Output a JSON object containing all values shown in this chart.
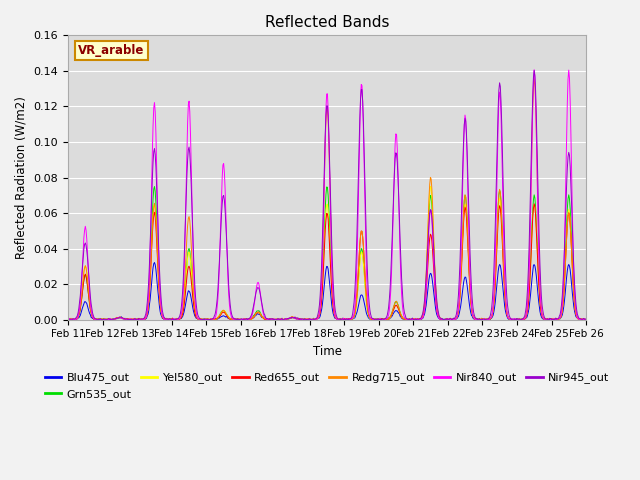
{
  "title": "Reflected Bands",
  "xlabel": "Time",
  "ylabel": "Reflected Radiation (W/m2)",
  "ylim": [
    0,
    0.16
  ],
  "annotation_text": "VR_arable",
  "series": [
    {
      "name": "Blu475_out",
      "color": "#0000ee"
    },
    {
      "name": "Grn535_out",
      "color": "#00dd00"
    },
    {
      "name": "Yel580_out",
      "color": "#ffff00"
    },
    {
      "name": "Red655_out",
      "color": "#ff0000"
    },
    {
      "name": "Redg715_out",
      "color": "#ff8800"
    },
    {
      "name": "Nir840_out",
      "color": "#ff00ff"
    },
    {
      "name": "Nir945_out",
      "color": "#9900cc"
    }
  ],
  "xtick_labels": [
    "Feb 11",
    "Feb 12",
    "Feb 13",
    "Feb 14",
    "Feb 15",
    "Feb 16",
    "Feb 17",
    "Feb 18",
    "Feb 19",
    "Feb 20",
    "Feb 21",
    "Feb 22",
    "Feb 23",
    "Feb 24",
    "Feb 25",
    "Feb 26"
  ],
  "background_color": "#dcdcdc",
  "fig_background": "#f2f2f2",
  "n_days": 15,
  "pts_per_day": 48,
  "sigma": 0.07,
  "nir840_peaks": [
    0.052,
    0.001,
    0.122,
    0.123,
    0.088,
    0.021,
    0.001,
    0.128,
    0.133,
    0.105,
    0.062,
    0.115,
    0.128,
    0.14,
    0.14
  ],
  "nir945_peaks": [
    0.043,
    0.001,
    0.096,
    0.097,
    0.07,
    0.018,
    0.001,
    0.121,
    0.13,
    0.094,
    0.062,
    0.113,
    0.133,
    0.14,
    0.094
  ],
  "blu_peaks": [
    0.01,
    0.001,
    0.032,
    0.016,
    0.002,
    0.003,
    0.001,
    0.03,
    0.014,
    0.005,
    0.026,
    0.024,
    0.031,
    0.031,
    0.031
  ],
  "grn_peaks": [
    0.025,
    0.001,
    0.075,
    0.04,
    0.005,
    0.005,
    0.001,
    0.075,
    0.04,
    0.01,
    0.07,
    0.07,
    0.073,
    0.07,
    0.07
  ],
  "yel_peaks": [
    0.03,
    0.001,
    0.065,
    0.038,
    0.005,
    0.004,
    0.001,
    0.065,
    0.038,
    0.008,
    0.075,
    0.065,
    0.068,
    0.065,
    0.062
  ],
  "red_peaks": [
    0.025,
    0.001,
    0.06,
    0.03,
    0.004,
    0.004,
    0.001,
    0.06,
    0.05,
    0.008,
    0.048,
    0.063,
    0.064,
    0.065,
    0.06
  ],
  "redg_peaks": [
    0.03,
    0.001,
    0.065,
    0.058,
    0.005,
    0.004,
    0.001,
    0.12,
    0.05,
    0.01,
    0.08,
    0.07,
    0.073,
    0.135,
    0.06
  ]
}
